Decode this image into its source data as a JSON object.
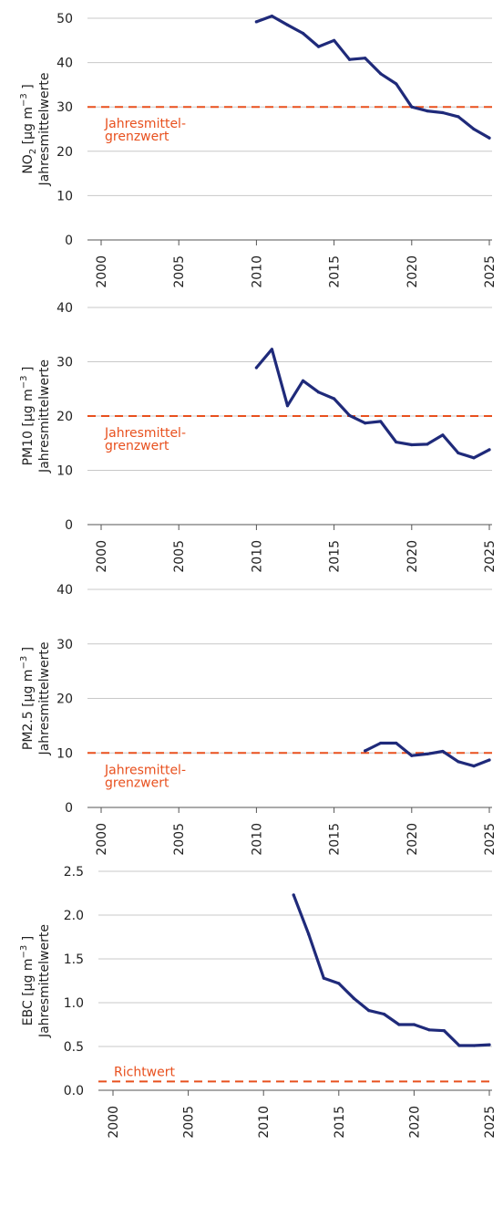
{
  "chart_data": [
    {
      "type": "line",
      "ylabel_line1_prefix": "NO",
      "ylabel_line1_sub": "2",
      "ylabel_line1_unit": "[µg m",
      "ylabel_line1_sup": "−3",
      "ylabel_line1_close": "]",
      "ylabel_line2": "Jahresmittelwerte",
      "ylim": [
        0,
        50
      ],
      "yticks": [
        0,
        10,
        20,
        30,
        40,
        50
      ],
      "ytick_labels": [
        "0",
        "10",
        "20",
        "30",
        "40",
        "50"
      ],
      "xlim": [
        1999,
        2026
      ],
      "xticks": [
        2000,
        2005,
        2010,
        2015,
        2020,
        2025
      ],
      "xtick_labels": [
        "2000",
        "2005",
        "2010",
        "2015",
        "2020",
        "2025"
      ],
      "grid": "horizontal",
      "series_color": "#1f2a7a",
      "x": [
        2010,
        2011,
        2012,
        2013,
        2014,
        2015,
        2016,
        2017,
        2018,
        2019,
        2020,
        2021,
        2022,
        2023,
        2024,
        2025
      ],
      "values": [
        49.2,
        50.5,
        48.5,
        46.6,
        43.6,
        45.0,
        40.7,
        41.0,
        37.5,
        35.2,
        30.0,
        29.1,
        28.7,
        27.8,
        25.0,
        23.0
      ],
      "limit_value": 30,
      "limit_color": "#e8501e",
      "limit_label_line1": "Jahresmittel-",
      "limit_label_line2": "grenzwert"
    },
    {
      "type": "line",
      "ylabel_line1_prefix": "PM10",
      "ylabel_line1_sub": "",
      "ylabel_line1_unit": "[µg m",
      "ylabel_line1_sup": "−3",
      "ylabel_line1_close": "]",
      "ylabel_line2": "Jahresmittelwerte",
      "ylim": [
        0,
        40
      ],
      "yticks": [
        0,
        10,
        20,
        30,
        40
      ],
      "ytick_labels": [
        "0",
        "10",
        "20",
        "30",
        "40"
      ],
      "xlim": [
        1999,
        2026
      ],
      "xticks": [
        2000,
        2005,
        2010,
        2015,
        2020,
        2025
      ],
      "xtick_labels": [
        "2000",
        "2005",
        "2010",
        "2015",
        "2020",
        "2025"
      ],
      "grid": "horizontal",
      "series_color": "#1f2a7a",
      "x": [
        2010,
        2011,
        2012,
        2013,
        2014,
        2015,
        2016,
        2017,
        2018,
        2019,
        2020,
        2021,
        2022,
        2023,
        2024,
        2025
      ],
      "values": [
        28.9,
        32.3,
        21.9,
        26.5,
        24.4,
        23.2,
        20.1,
        18.7,
        19.0,
        15.2,
        14.7,
        14.8,
        16.5,
        13.2,
        12.3,
        13.8
      ],
      "limit_value": 20,
      "limit_color": "#e8501e",
      "limit_label_line1": "Jahresmittel-",
      "limit_label_line2": "grenzwert"
    },
    {
      "type": "line",
      "ylabel_line1_prefix": "PM2.5",
      "ylabel_line1_sub": "",
      "ylabel_line1_unit": "[µg m",
      "ylabel_line1_sup": "−3",
      "ylabel_line1_close": "]",
      "ylabel_line2": "Jahresmittelwerte",
      "ylim": [
        0,
        40
      ],
      "yticks": [
        0,
        10,
        20,
        30,
        40
      ],
      "ytick_labels": [
        "0",
        "10",
        "20",
        "30",
        "40"
      ],
      "xlim": [
        1999,
        2026
      ],
      "xticks": [
        2000,
        2005,
        2010,
        2015,
        2020,
        2025
      ],
      "xtick_labels": [
        "2000",
        "2005",
        "2010",
        "2015",
        "2020",
        "2025"
      ],
      "grid": "horizontal",
      "series_color": "#1f2a7a",
      "x": [
        2017,
        2018,
        2019,
        2020,
        2021,
        2022,
        2023,
        2024,
        2025
      ],
      "values": [
        10.4,
        11.8,
        11.8,
        9.5,
        9.8,
        10.3,
        8.4,
        7.6,
        8.7
      ],
      "limit_value": 10,
      "limit_color": "#e8501e",
      "limit_label_line1": "Jahresmittel-",
      "limit_label_line2": "grenzwert"
    },
    {
      "type": "line",
      "ylabel_line1_prefix": "EBC",
      "ylabel_line1_sub": "",
      "ylabel_line1_unit": "[µg m",
      "ylabel_line1_sup": "−3",
      "ylabel_line1_close": "]",
      "ylabel_line2": "Jahresmittelwerte",
      "ylim": [
        0,
        2.5
      ],
      "yticks": [
        0,
        0.5,
        1.0,
        1.5,
        2.0,
        2.5
      ],
      "ytick_labels": [
        "0.0",
        "0.5",
        "1.0",
        "1.5",
        "2.0",
        "2.5"
      ],
      "xlim": [
        1999,
        2026
      ],
      "xticks": [
        2000,
        2005,
        2010,
        2015,
        2020,
        2025
      ],
      "xtick_labels": [
        "2000",
        "2005",
        "2010",
        "2015",
        "2020",
        "2025"
      ],
      "grid": "horizontal",
      "series_color": "#1f2a7a",
      "x": [
        2012,
        2013,
        2014,
        2015,
        2016,
        2017,
        2018,
        2019,
        2020,
        2021,
        2022,
        2023,
        2024,
        2025
      ],
      "values": [
        2.23,
        1.78,
        1.28,
        1.22,
        1.05,
        0.91,
        0.87,
        0.75,
        0.75,
        0.69,
        0.68,
        0.51,
        0.51,
        0.52
      ],
      "limit_value": 0.1,
      "limit_color": "#e8501e",
      "limit_label_line1": "Richtwert",
      "limit_label_line2": ""
    }
  ]
}
